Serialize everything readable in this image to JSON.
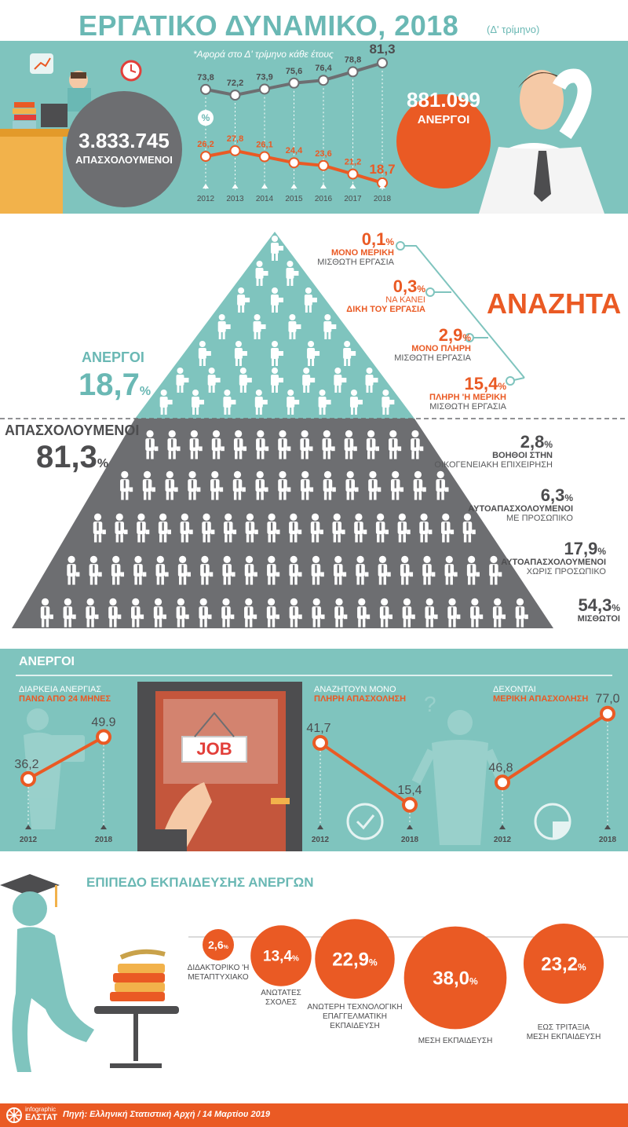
{
  "title": {
    "main": "ΕΡΓΑΤΙΚΟ ΔΥΝΑΜΙΚΟ, 2018",
    "sub": "(Δ' τρίμηνο)"
  },
  "hero": {
    "employed_value": "3.833.745",
    "employed_label": "ΑΠΑΣΧΟΛΟΥΜΕΝΟΙ",
    "unemployed_value": "881.099",
    "unemployed_label": "ΑΝΕΡΓΟΙ",
    "note": "*Αφορά στο Δ' τρίμηνο κάθε έτους",
    "percent_label": "%"
  },
  "pyramid": {
    "unemployed_label": "ΑΝΕΡΓΟΙ",
    "unemployed_pct": "18,7",
    "employed_label": "ΑΠΑΣΧΟΛΟΥΜΕΝΟΙ",
    "employed_pct": "81,3",
    "seeking_title": "ΑΝΑΖΗΤΑ",
    "seeking": [
      {
        "value": "0,1",
        "line1": "ΜΟΝΟ ΜΕΡΙΚΗ",
        "line2": "ΜΙΣΘΩΤΗ ΕΡΓΑΣΙΑ"
      },
      {
        "value": "0,3",
        "line1": "ΝΑ ΚΑΝΕΙ",
        "line2": "ΔΙΚΗ ΤΟΥ ΕΡΓΑΣΙΑ"
      },
      {
        "value": "2,9",
        "line1": "ΜΟΝΟ ΠΛΗΡΗ",
        "line2": "ΜΙΣΘΩΤΗ ΕΡΓΑΣΙΑ"
      },
      {
        "value": "15,4",
        "line1": "ΠΛΗΡΗ 'Η ΜΕΡΙΚΗ",
        "line2": "ΜΙΣΘΩΤΗ ΕΡΓΑΣΙΑ"
      }
    ],
    "employed_types": [
      {
        "value": "2,8",
        "line1": "ΒΟΗΘΟΙ ΣΤΗΝ",
        "line2": "ΟΙΚΟΓΕΝΕΙΑΚΗ ΕΠΙΧΕΙΡΗΣΗ"
      },
      {
        "value": "6,3",
        "line1": "ΑΥΤΟΑΠΑΣΧΟΛΟΥΜΕΝΟΙ",
        "line2": "ΜΕ ΠΡΟΣΩΠΙΚΟ"
      },
      {
        "value": "17,9",
        "line1": "ΑΥΤΟΑΠΑΣΧΟΛΟΥΜΕΝΟΙ",
        "line2": "ΧΩΡΙΣ ΠΡΟΣΩΠΙΚΟ"
      },
      {
        "value": "54,3",
        "line1": "ΜΙΣΘΩΤΟΙ",
        "line2": ""
      }
    ],
    "pct_sign": "%"
  },
  "unemployed_section": {
    "title": "ΑΝΕΡΓΟΙ",
    "panels": [
      {
        "line1": "ΔΙΑΡΚΕΙΑ ΑΝΕΡΓΙΑΣ",
        "line2": "ΠΑΝΩ ΑΠΟ 24 ΜΗΝΕΣ"
      },
      {
        "line1": "ΑΝΑΖΗΤΟΥΝ ΜΟΝΟ",
        "line2": "ΠΛΗΡΗ ΑΠΑΣΧΟΛΗΣΗ"
      },
      {
        "line1": "ΔΕΧΟΝΤΑΙ",
        "line2": "ΜΕΡΙΚΗ ΑΠΑΣΧΟΛΗΣΗ"
      }
    ],
    "job_sign": "JOB"
  },
  "education": {
    "title": "ΕΠΙΠΕΔΟ ΕΚΠΑΙΔΕΥΣΗΣ ΑΝΕΡΓΩΝ"
  },
  "footer": {
    "logo_line1": "infographic",
    "logo_line2": "ΕΛΣΤΑΤ",
    "source": "Πηγή: Ελληνική Στατιστική Αρχή  / 14 Μαρτίου 2019"
  },
  "colors": {
    "teal": "#7fc4be",
    "teal_dark": "#6ab8b4",
    "orange": "#ea5a24",
    "gray": "#6d6e71",
    "dark": "#4d4d4f"
  },
  "chart_data": [
    {
      "type": "line",
      "x": [
        "2012",
        "2013",
        "2014",
        "2015",
        "2016",
        "2017",
        "2018"
      ],
      "series": [
        {
          "values": [
            73.8,
            72.2,
            73.9,
            75.6,
            76.4,
            78.8,
            81.3
          ],
          "labels": [
            "73,8",
            "72,2",
            "73,9",
            "75,6",
            "76,4",
            "78,8",
            "81,3"
          ]
        },
        {
          "values": [
            26.2,
            27.8,
            26.1,
            24.4,
            23.6,
            21.2,
            18.7
          ],
          "labels": [
            "26,2",
            "27,8",
            "26,1",
            "24,4",
            "23,6",
            "21,2",
            "18,7"
          ]
        }
      ]
    },
    {
      "type": "line",
      "x": [
        "2012",
        "2018"
      ],
      "values": [
        36.2,
        49.9
      ],
      "labels": [
        "36,2",
        "49.9"
      ]
    },
    {
      "type": "line",
      "x": [
        "2012",
        "2018"
      ],
      "values": [
        41.7,
        15.4
      ],
      "labels": [
        "41,7",
        "15,4"
      ]
    },
    {
      "type": "line",
      "x": [
        "2012",
        "2018"
      ],
      "values": [
        46.8,
        77.0
      ],
      "labels": [
        "46,8",
        "77,0"
      ]
    },
    {
      "type": "bubble",
      "categories": [
        "ΔΙΔΑΚΤΟΡΙΚΟ 'Η ΜΕΤΑΠΤΥΧΙΑΚΟ",
        "ΑΝΩΤΑΤΕΣ ΣΧΟΛΕΣ",
        "ΑΝΩΤΕΡΗ ΤΕΧΝΟΛΟΓΙΚΗ ΕΠΑΓΓΕΛΜΑΤΙΚΗ ΕΚΠΑΙΔΕΥΣΗ",
        "ΜΕΣΗ ΕΚΠΑΙΔΕΥΣΗ",
        "ΕΩΣ ΤΡΙΤΑΞΙΑ ΜΕΣΗ ΕΚΠΑΙΔΕΥΣΗ"
      ],
      "label_lines": [
        [
          "ΔΙΔΑΚΤΟΡΙΚΟ 'Η",
          "ΜΕΤΑΠΤΥΧΙΑΚΟ"
        ],
        [
          "ΑΝΩΤΑΤΕΣ",
          "ΣΧΟΛΕΣ"
        ],
        [
          "ΑΝΩΤΕΡΗ ΤΕΧΝΟΛΟΓΙΚΗ",
          "ΕΠΑΓΓΕΛΜΑΤΙΚΗ",
          "ΕΚΠΑΙΔΕΥΣΗ"
        ],
        [
          "ΜΕΣΗ ΕΚΠΑΙΔΕΥΣΗ"
        ],
        [
          "ΕΩΣ ΤΡΙΤΑΞΙΑ",
          "ΜΕΣΗ ΕΚΠΑΙΔΕΥΣΗ"
        ]
      ],
      "values": [
        2.6,
        13.4,
        22.9,
        38.0,
        23.2
      ],
      "labels": [
        "2,6",
        "13,4",
        "22,9",
        "38,0",
        "23,2"
      ],
      "unit": "%"
    }
  ]
}
